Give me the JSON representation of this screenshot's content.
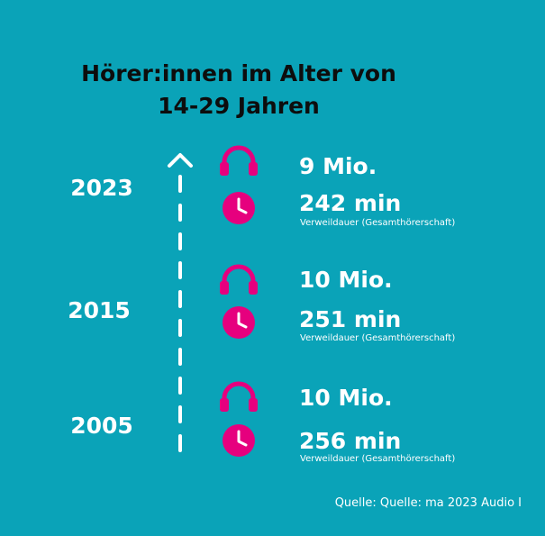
{
  "title": {
    "line1": "Hörer:innen im Alter von",
    "line2": "14-29 Jahren"
  },
  "icons": {
    "listeners": "headphones-icon",
    "duration": "clock-icon"
  },
  "colors": {
    "background": "#0aa3b8",
    "accent": "#e6007e",
    "text": "#ffffff",
    "title": "#0d0d0d"
  },
  "entries": [
    {
      "year": "2023",
      "listeners": "9 Mio.",
      "duration": "242 min",
      "duration_note": "Verweildauer (Gesamthörerschaft)"
    },
    {
      "year": "2015",
      "listeners": "10 Mio.",
      "duration": "251 min",
      "duration_note": "Verweildauer (Gesamthörerschaft)"
    },
    {
      "year": "2005",
      "listeners": "10 Mio.",
      "duration": "256 min",
      "duration_note": "Verweildauer (Gesamthörerschaft)"
    }
  ],
  "source": "Quelle: Quelle: ma 2023 Audio I"
}
